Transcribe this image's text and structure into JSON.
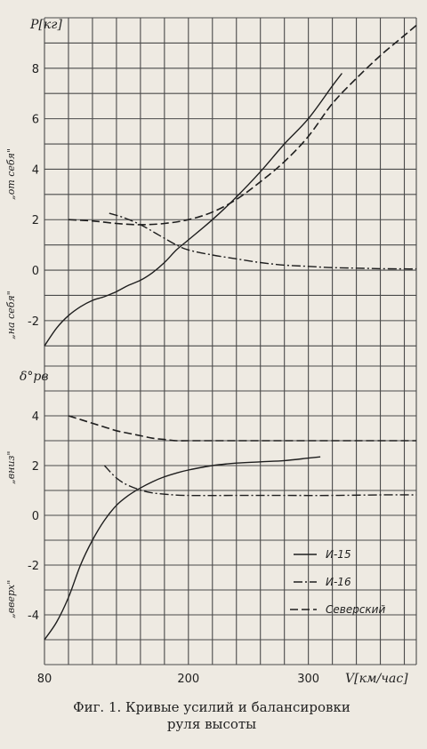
{
  "chart_data": [
    {
      "type": "line",
      "ylabel": "P[кг]",
      "xlim": [
        80,
        390
      ],
      "ylim": [
        -3.8,
        10
      ],
      "y_ticks": [
        "8",
        "6",
        "4",
        "2",
        "0",
        "-2"
      ],
      "side_labels": [
        "„от себя\"",
        "„на себя\""
      ],
      "grid": true,
      "series": [
        {
          "name": "И-15",
          "style": "solid",
          "x": [
            80,
            90,
            100,
            110,
            120,
            130,
            140,
            150,
            160,
            170,
            180,
            190,
            200,
            220,
            240,
            260,
            280,
            300,
            320,
            328
          ],
          "y": [
            -3.0,
            -2.3,
            -1.8,
            -1.45,
            -1.2,
            -1.05,
            -0.85,
            -0.6,
            -0.4,
            -0.1,
            0.3,
            0.8,
            1.2,
            2.0,
            2.9,
            3.9,
            5.0,
            6.0,
            7.3,
            7.8
          ]
        },
        {
          "name": "И-16",
          "style": "dash-dot",
          "x": [
            134,
            145,
            160,
            175,
            190,
            200,
            220,
            240,
            260,
            280,
            300,
            320,
            340,
            360,
            380,
            390
          ],
          "y": [
            2.25,
            2.1,
            1.8,
            1.4,
            1.0,
            0.8,
            0.6,
            0.45,
            0.3,
            0.2,
            0.15,
            0.1,
            0.08,
            0.06,
            0.05,
            0.05
          ]
        },
        {
          "name": "Северский",
          "style": "dashed",
          "x": [
            100,
            120,
            140,
            160,
            180,
            200,
            220,
            240,
            260,
            280,
            300,
            320,
            340,
            360,
            380,
            390
          ],
          "y": [
            2.0,
            1.95,
            1.85,
            1.8,
            1.85,
            2.0,
            2.3,
            2.8,
            3.5,
            4.3,
            5.3,
            6.6,
            7.6,
            8.5,
            9.3,
            9.7
          ]
        }
      ]
    },
    {
      "type": "line",
      "ylabel": "δ°рв",
      "xlabel": "V[км/час]",
      "x_ticks": [
        "80",
        "200",
        "300"
      ],
      "xlim": [
        80,
        390
      ],
      "ylim": [
        -6,
        6
      ],
      "y_ticks": [
        "4",
        "2",
        "0",
        "-2",
        "-4"
      ],
      "side_labels": [
        "„вниз\"",
        "„вверх\""
      ],
      "grid": true,
      "series": [
        {
          "name": "И-15",
          "style": "solid",
          "x": [
            80,
            90,
            100,
            110,
            120,
            130,
            140,
            150,
            160,
            170,
            180,
            190,
            200,
            220,
            240,
            260,
            280,
            300,
            310
          ],
          "y": [
            -5.0,
            -4.3,
            -3.3,
            -2.0,
            -1.0,
            -0.2,
            0.4,
            0.8,
            1.1,
            1.35,
            1.55,
            1.7,
            1.82,
            2.0,
            2.1,
            2.15,
            2.2,
            2.3,
            2.35
          ]
        },
        {
          "name": "И-16",
          "style": "dash-dot",
          "x": [
            130,
            140,
            150,
            165,
            180,
            200,
            240,
            280,
            320,
            360,
            390
          ],
          "y": [
            2.0,
            1.5,
            1.2,
            0.95,
            0.85,
            0.8,
            0.8,
            0.8,
            0.8,
            0.82,
            0.82
          ]
        },
        {
          "name": "Северский",
          "style": "dashed",
          "x": [
            100,
            110,
            120,
            130,
            140,
            150,
            160,
            170,
            180,
            190,
            200,
            220,
            260,
            300,
            340,
            370,
            390
          ],
          "y": [
            4.0,
            3.85,
            3.7,
            3.55,
            3.4,
            3.3,
            3.2,
            3.1,
            3.05,
            3.0,
            3.0,
            3.0,
            3.0,
            3.0,
            3.0,
            3.0,
            3.0
          ]
        }
      ],
      "legend": {
        "placement": "bottom-right",
        "entries": [
          {
            "name": "И-15",
            "style": "solid"
          },
          {
            "name": "И-16",
            "style": "dash-dot"
          },
          {
            "name": "Северский",
            "style": "dashed"
          }
        ]
      }
    }
  ],
  "caption": {
    "line1": "Фиг. 1. Кривые усилий и балансировки",
    "line2": "руля высоты"
  }
}
